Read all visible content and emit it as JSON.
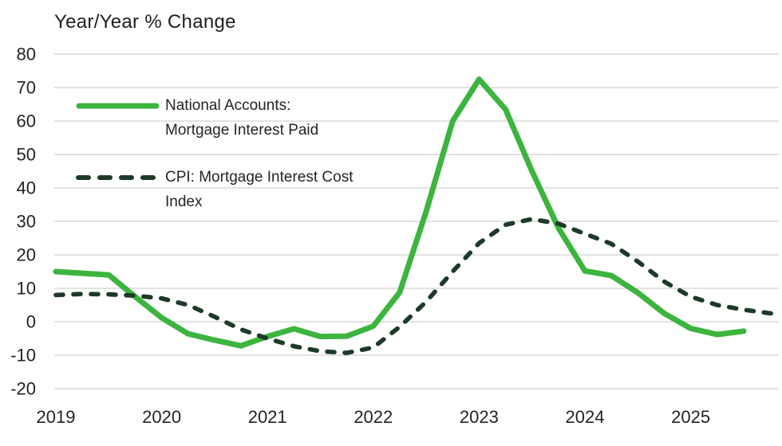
{
  "chart_data": {
    "type": "line",
    "title": "Year/Year % Change",
    "x_axis": {
      "ticks": [
        2019,
        2020,
        2021,
        2022,
        2023,
        2024,
        2025
      ]
    },
    "y_axis": {
      "ticks": [
        80,
        70,
        60,
        50,
        40,
        30,
        20,
        10,
        0,
        -10,
        -20
      ],
      "range": [
        -20,
        80
      ]
    },
    "grid": {
      "horizontal": true,
      "color": "#d9d9d9"
    },
    "axis_label_color": "#232323",
    "legend": [
      {
        "label": "National Accounts: Mortgage Interest Paid",
        "lines": [
          "National Accounts:",
          "Mortgage Interest Paid"
        ],
        "style": "solid"
      },
      {
        "label": "CPI: Mortgage Interest Cost Index",
        "lines": [
          "CPI: Mortgage Interest Cost",
          "Index"
        ],
        "style": "dashed"
      }
    ],
    "series": [
      {
        "name": "National Accounts: Mortgage Interest Paid",
        "style": "solid",
        "color": "#3cb43e",
        "points": [
          [
            2019.0,
            15
          ],
          [
            2019.25,
            14.5
          ],
          [
            2019.5,
            14
          ],
          [
            2019.75,
            7.5
          ],
          [
            2020.0,
            1.2
          ],
          [
            2020.25,
            -3.6
          ],
          [
            2020.5,
            -5.5
          ],
          [
            2020.75,
            -7.2
          ],
          [
            2021.0,
            -4.4
          ],
          [
            2021.25,
            -2.1
          ],
          [
            2021.5,
            -4.4
          ],
          [
            2021.75,
            -4.3
          ],
          [
            2022.0,
            -1.3
          ],
          [
            2022.25,
            8.8
          ],
          [
            2022.5,
            33
          ],
          [
            2022.75,
            60
          ],
          [
            2023.0,
            72.5
          ],
          [
            2023.25,
            63.5
          ],
          [
            2023.5,
            45
          ],
          [
            2023.75,
            28
          ],
          [
            2024.0,
            15.2
          ],
          [
            2024.25,
            13.8
          ],
          [
            2024.5,
            8.7
          ],
          [
            2024.75,
            2.5
          ],
          [
            2025.0,
            -2
          ],
          [
            2025.25,
            -3.8
          ],
          [
            2025.5,
            -2.8
          ]
        ]
      },
      {
        "name": "CPI: Mortgage Interest Cost Index",
        "style": "dashed",
        "color": "#1d3a28",
        "points": [
          [
            2019.0,
            8
          ],
          [
            2019.25,
            8.3
          ],
          [
            2019.5,
            8.2
          ],
          [
            2019.75,
            7.8
          ],
          [
            2020.0,
            7
          ],
          [
            2020.25,
            5
          ],
          [
            2020.5,
            1.5
          ],
          [
            2020.75,
            -2.3
          ],
          [
            2021.0,
            -5
          ],
          [
            2021.25,
            -7.3
          ],
          [
            2021.5,
            -8.8
          ],
          [
            2021.75,
            -9.3
          ],
          [
            2022.0,
            -7.7
          ],
          [
            2022.25,
            -1.5
          ],
          [
            2022.5,
            6
          ],
          [
            2022.75,
            15
          ],
          [
            2023.0,
            23.5
          ],
          [
            2023.25,
            29
          ],
          [
            2023.5,
            30.7
          ],
          [
            2023.75,
            29.3
          ],
          [
            2024.0,
            26.3
          ],
          [
            2024.25,
            23.3
          ],
          [
            2024.5,
            18
          ],
          [
            2024.75,
            12
          ],
          [
            2025.0,
            7.5
          ],
          [
            2025.25,
            5
          ],
          [
            2025.5,
            3.6
          ],
          [
            2025.83,
            2.2
          ]
        ]
      }
    ]
  }
}
